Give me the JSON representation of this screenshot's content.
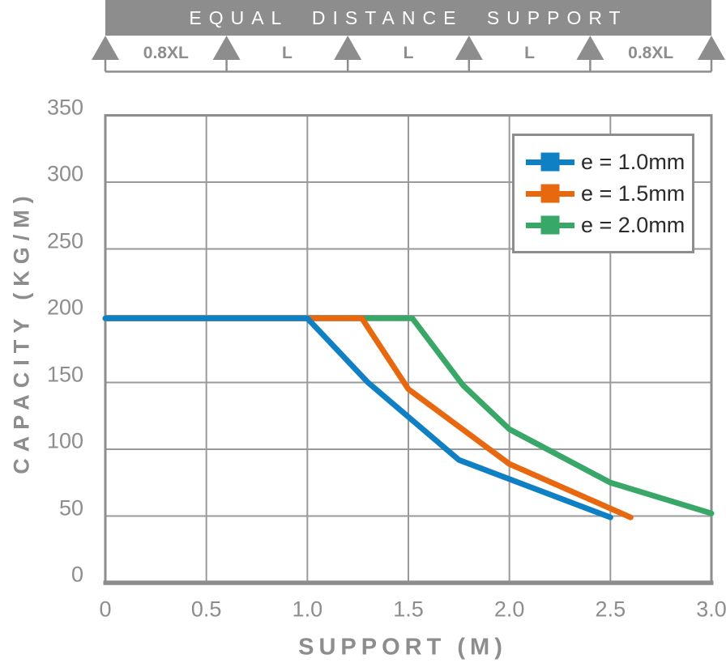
{
  "diagram": {
    "title": "EQUAL DISTANCE SUPPORT",
    "support_count": 6,
    "span_labels": [
      "0.8XL",
      "L",
      "L",
      "L",
      "0.8XL"
    ]
  },
  "chart_data": {
    "type": "line",
    "title": "",
    "xlabel": "SUPPORT (M)",
    "ylabel": "CAPACITY (KG/M)",
    "xlim": [
      0,
      3
    ],
    "ylim": [
      0,
      350
    ],
    "x_ticks": [
      0,
      0.5,
      1.0,
      1.5,
      2.0,
      2.5,
      3.0
    ],
    "x_tick_labels": [
      "0",
      "0.5",
      "1.0",
      "1.5",
      "2.0",
      "2.5",
      "3.0"
    ],
    "y_ticks": [
      0,
      50,
      100,
      150,
      200,
      250,
      300,
      350
    ],
    "y_tick_labels": [
      "0",
      "50",
      "100",
      "150",
      "200",
      "250",
      "300",
      "350"
    ],
    "grid": true,
    "legend_position": "top-right",
    "series": [
      {
        "name": "e-1.0mm",
        "label": "e = 1.0mm",
        "color": "#0f80c4",
        "points": [
          [
            0,
            198
          ],
          [
            1.0,
            198
          ],
          [
            1.3,
            150
          ],
          [
            1.75,
            92
          ],
          [
            2.5,
            49
          ]
        ]
      },
      {
        "name": "e-1.5mm",
        "label": "e = 1.5mm",
        "color": "#e8680f",
        "points": [
          [
            0,
            198
          ],
          [
            1.27,
            198
          ],
          [
            1.5,
            145
          ],
          [
            2.0,
            89
          ],
          [
            2.6,
            49
          ]
        ]
      },
      {
        "name": "e-2.0mm",
        "label": "e = 2.0mm",
        "color": "#38a767",
        "points": [
          [
            0,
            198
          ],
          [
            1.52,
            198
          ],
          [
            1.77,
            148
          ],
          [
            2.0,
            115
          ],
          [
            2.5,
            75
          ],
          [
            3.0,
            52
          ]
        ]
      }
    ]
  },
  "colors": {
    "axis_gray": "#8d8d8d",
    "grid_gray": "#9a9a9a",
    "banner_bg": "#8d8d8d",
    "banner_text": "#ffffff",
    "legend_text": "#2a2a2a",
    "background": "#ffffff"
  }
}
